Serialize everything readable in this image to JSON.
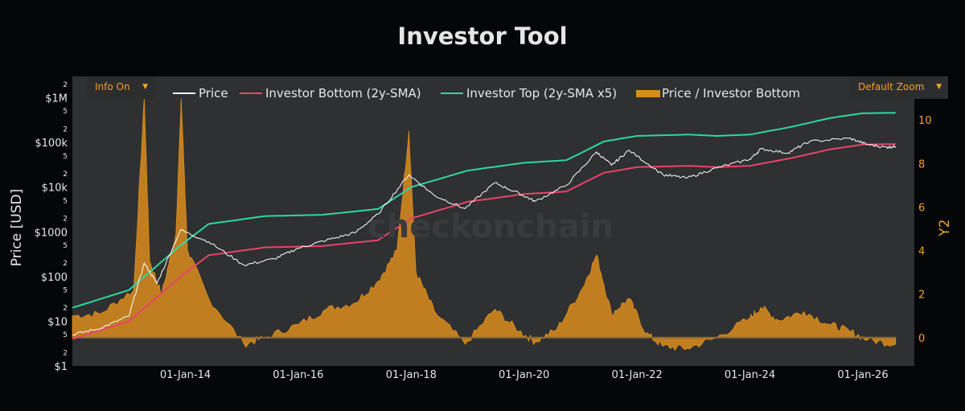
{
  "title": "Investor Tool",
  "controls": {
    "info_label": "Info On",
    "zoom_label": "Default Zoom"
  },
  "watermark": "checkonchain",
  "colors": {
    "background": "#050608",
    "plot_bg": "#2e3031",
    "price": "#ffffff",
    "bottom": "#e8436b",
    "top": "#2fd6a0",
    "ratio": "#d98c1e",
    "accent": "#f0a32b"
  },
  "chart_data": {
    "type": "line",
    "title": "Investor Tool",
    "ylabel": "Price [USD]",
    "y2label": "Y2",
    "xlabel": "",
    "y_scale": "log",
    "y_range": [
      1,
      3000000
    ],
    "y2_range": [
      -1.3,
      12
    ],
    "x_range": [
      "2012-01-01",
      "2026-11-30"
    ],
    "y_tick_labels": [
      "$1",
      "$10",
      "$100",
      "$1000",
      "$10k",
      "$100k",
      "$1M"
    ],
    "y2_tick_labels": [
      "0",
      "2",
      "4",
      "6",
      "8",
      "10"
    ],
    "x_tick_labels": [
      "01-Jan-14",
      "01-Jan-16",
      "01-Jan-18",
      "01-Jan-20",
      "01-Jan-22",
      "01-Jan-24",
      "01-Jan-26"
    ],
    "legend_position": "top",
    "grid": false,
    "series": [
      {
        "name": "Price",
        "type": "line",
        "axis": "y",
        "x": [
          "2012-01-01",
          "2012-07-01",
          "2013-01-01",
          "2013-04-10",
          "2013-07-01",
          "2013-12-01",
          "2014-06-01",
          "2015-01-15",
          "2015-08-01",
          "2016-01-01",
          "2016-07-01",
          "2017-01-01",
          "2017-06-01",
          "2017-12-17",
          "2018-06-01",
          "2018-12-15",
          "2019-06-26",
          "2019-12-01",
          "2020-03-13",
          "2020-10-01",
          "2021-04-14",
          "2021-07-20",
          "2021-11-10",
          "2022-06-18",
          "2022-11-21",
          "2023-06-01",
          "2024-01-01",
          "2024-03-14",
          "2024-09-01",
          "2025-01-20",
          "2025-10-06",
          "2026-02-01",
          "2026-06-01",
          "2026-08-01"
        ],
        "values": [
          5,
          7,
          13,
          200,
          70,
          1100,
          600,
          180,
          250,
          430,
          650,
          950,
          2500,
          19000,
          6500,
          3300,
          12500,
          7200,
          4800,
          11000,
          61000,
          31000,
          67000,
          19000,
          16000,
          27000,
          42000,
          72000,
          58000,
          105000,
          124000,
          90000,
          78000,
          82000
        ]
      },
      {
        "name": "Investor Bottom (2y-SMA)",
        "type": "line",
        "axis": "y",
        "x": [
          "2012-01-01",
          "2013-01-01",
          "2013-12-01",
          "2014-06-01",
          "2015-06-01",
          "2016-06-01",
          "2017-06-01",
          "2018-01-01",
          "2019-01-01",
          "2020-01-01",
          "2020-10-01",
          "2021-06-01",
          "2022-01-01",
          "2022-12-01",
          "2023-06-01",
          "2024-01-01",
          "2024-10-01",
          "2025-06-01",
          "2026-01-01",
          "2026-08-01"
        ],
        "values": [
          4,
          10,
          100,
          300,
          450,
          480,
          650,
          2000,
          4700,
          7000,
          8000,
          21000,
          28000,
          30000,
          28000,
          30000,
          45000,
          70000,
          90000,
          92000
        ]
      },
      {
        "name": "Investor Top (2y-SMA x5)",
        "type": "line",
        "axis": "y",
        "x": [
          "2012-01-01",
          "2013-01-01",
          "2013-12-01",
          "2014-06-01",
          "2015-06-01",
          "2016-06-01",
          "2017-06-01",
          "2018-01-01",
          "2019-01-01",
          "2020-01-01",
          "2020-10-01",
          "2021-06-01",
          "2022-01-01",
          "2022-12-01",
          "2023-06-01",
          "2024-01-01",
          "2024-10-01",
          "2025-06-01",
          "2026-01-01",
          "2026-08-01"
        ],
        "values": [
          20,
          50,
          500,
          1500,
          2250,
          2400,
          3250,
          10000,
          23500,
          35000,
          40000,
          105000,
          140000,
          150000,
          140000,
          150000,
          225000,
          350000,
          450000,
          460000
        ]
      },
      {
        "name": "Price / Investor Bottom",
        "type": "area",
        "axis": "y2",
        "x": [
          "2012-01-01",
          "2012-07-01",
          "2013-02-01",
          "2013-04-10",
          "2013-05-15",
          "2013-08-01",
          "2013-11-01",
          "2013-12-05",
          "2014-01-15",
          "2014-06-01",
          "2015-01-15",
          "2015-06-01",
          "2016-01-01",
          "2016-07-01",
          "2017-01-01",
          "2017-06-01",
          "2017-10-01",
          "2017-12-17",
          "2018-02-01",
          "2018-06-01",
          "2018-12-15",
          "2019-06-26",
          "2019-12-01",
          "2020-03-13",
          "2020-08-01",
          "2021-01-15",
          "2021-04-14",
          "2021-07-20",
          "2021-11-10",
          "2022-03-01",
          "2022-06-18",
          "2022-11-21",
          "2023-06-01",
          "2024-01-01",
          "2024-03-14",
          "2024-07-01",
          "2024-12-15",
          "2025-06-01",
          "2025-10-06",
          "2026-02-01",
          "2026-08-01"
        ],
        "values": [
          1.0,
          1.1,
          2.2,
          11.0,
          3.5,
          2.0,
          4.8,
          11.0,
          4.0,
          1.8,
          -0.3,
          0.0,
          0.6,
          1.3,
          1.6,
          2.6,
          4.0,
          9.5,
          3.0,
          1.2,
          -0.3,
          1.3,
          0.3,
          -0.2,
          0.4,
          2.3,
          3.8,
          1.1,
          1.8,
          0.2,
          -0.4,
          -0.5,
          0.0,
          0.9,
          1.4,
          0.8,
          1.2,
          0.6,
          0.3,
          -0.1,
          -0.3
        ]
      }
    ]
  }
}
